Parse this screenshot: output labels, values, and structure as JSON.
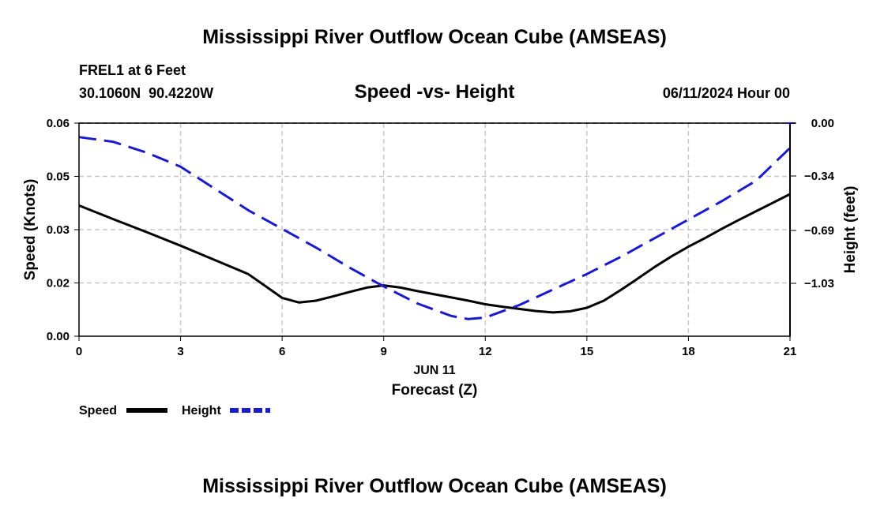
{
  "page": {
    "title_top": "Mississippi River Outflow Ocean Cube (AMSEAS)",
    "title_bottom": "Mississippi River Outflow Ocean Cube (AMSEAS)",
    "station_line": "FREL1 at 6 Feet",
    "coords_line": "30.1060N  90.4220W",
    "datetime": "06/11/2024 Hour 00"
  },
  "chart_data": {
    "type": "line",
    "title": "Speed -vs- Height",
    "xlabel": "Forecast (Z)",
    "date_label": "JUN 11",
    "xlim": [
      0,
      21
    ],
    "x_ticks": [
      0,
      3,
      6,
      9,
      12,
      15,
      18,
      21
    ],
    "x_tick_labels": [
      "0",
      "3",
      "6",
      "9",
      "12",
      "15",
      "18",
      "21"
    ],
    "left_axis": {
      "label": "Speed (Knots)",
      "lim": [
        0,
        0.06
      ],
      "ticks": [
        0,
        0.015,
        0.03,
        0.045,
        0.06
      ],
      "tick_labels": [
        "0.00",
        "0.02",
        "0.03",
        "0.05",
        "0.06"
      ]
    },
    "right_axis": {
      "label": "Height (feet)",
      "lim": [
        -1.37,
        0.0
      ],
      "ticks": [
        0.0,
        -0.34,
        -0.69,
        -1.03
      ],
      "tick_labels": [
        "0.00",
        "−0.34",
        "−0.69",
        "−1.03"
      ]
    },
    "series": [
      {
        "name": "Speed",
        "axis": "left",
        "color": "#000000",
        "dash": "solid",
        "x": [
          0,
          1,
          2,
          3,
          4,
          5,
          6,
          6.5,
          7,
          7.5,
          8,
          8.5,
          9,
          9.5,
          10,
          10.5,
          11,
          11.5,
          12,
          12.5,
          13,
          13.5,
          14,
          14.5,
          15,
          15.5,
          16,
          16.5,
          17,
          17.5,
          18,
          18.5,
          19,
          19.5,
          20,
          20.5,
          21
        ],
        "values": [
          0.0368,
          0.033,
          0.0293,
          0.0255,
          0.0215,
          0.0175,
          0.0108,
          0.0095,
          0.01,
          0.0112,
          0.0125,
          0.0137,
          0.0143,
          0.0137,
          0.0127,
          0.0118,
          0.0109,
          0.01,
          0.009,
          0.0083,
          0.0077,
          0.0071,
          0.0067,
          0.007,
          0.008,
          0.01,
          0.013,
          0.0162,
          0.0195,
          0.0225,
          0.0252,
          0.0277,
          0.0303,
          0.0328,
          0.0352,
          0.0376,
          0.04
        ]
      },
      {
        "name": "Height",
        "axis": "right",
        "color": "#1a1acc",
        "dash": "dashed",
        "x": [
          0,
          1,
          2,
          3,
          4,
          5,
          6,
          7,
          8,
          9,
          10,
          11,
          11.5,
          12,
          13,
          14,
          15,
          16,
          17,
          18,
          19,
          20,
          21
        ],
        "values": [
          -0.09,
          -0.12,
          -0.19,
          -0.28,
          -0.42,
          -0.56,
          -0.68,
          -0.8,
          -0.93,
          -1.05,
          -1.16,
          -1.24,
          -1.26,
          -1.25,
          -1.17,
          -1.07,
          -0.97,
          -0.86,
          -0.74,
          -0.62,
          -0.5,
          -0.37,
          -0.16
        ]
      }
    ],
    "legend": [
      "Speed",
      "Height"
    ],
    "legend_position": "bottom-left",
    "grid": true
  }
}
